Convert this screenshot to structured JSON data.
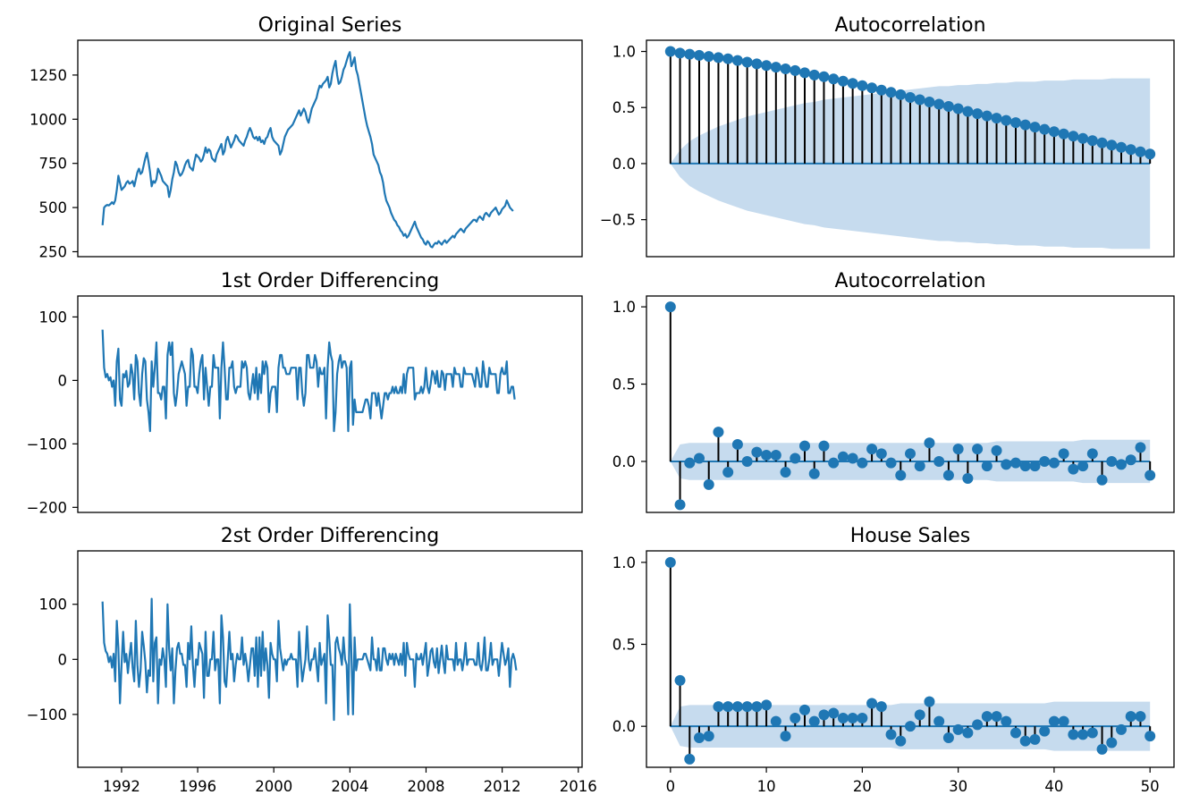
{
  "colors": {
    "series": "#1f77b4",
    "stem": "#000000",
    "confint": "#c6dbee",
    "frame": "#000000"
  },
  "chart_data": [
    {
      "type": "line",
      "title": "Original Series",
      "ylim": [
        222,
        1447
      ],
      "xlim": [
        1989.7,
        2016.2
      ],
      "yticks": [
        "250",
        "500",
        "750",
        "1000",
        "1250"
      ],
      "xticks": [],
      "x_start": 1991.0,
      "x_step": 0.0833,
      "values": [
        400,
        500,
        510,
        515,
        512,
        520,
        530,
        520,
        540,
        600,
        680,
        640,
        600,
        610,
        620,
        640,
        650,
        635,
        640,
        650,
        620,
        660,
        700,
        720,
        690,
        700,
        740,
        780,
        810,
        760,
        700,
        620,
        650,
        640,
        660,
        720,
        700,
        680,
        650,
        640,
        630,
        620,
        560,
        600,
        660,
        700,
        760,
        740,
        700,
        680,
        690,
        710,
        740,
        760,
        770,
        730,
        720,
        710,
        760,
        800,
        790,
        780,
        760,
        770,
        800,
        840,
        810,
        830,
        820,
        780,
        770,
        760,
        800,
        820,
        840,
        860,
        800,
        820,
        880,
        900,
        870,
        840,
        860,
        880,
        910,
        900,
        880,
        870,
        860,
        850,
        880,
        900,
        930,
        950,
        930,
        900,
        890,
        900,
        880,
        900,
        870,
        880,
        860,
        890,
        900,
        930,
        950,
        900,
        880,
        870,
        860,
        850,
        800,
        820,
        860,
        900,
        920,
        940,
        950,
        960,
        970,
        990,
        1010,
        1030,
        1050,
        1020,
        1040,
        1060,
        1040,
        1000,
        980,
        1020,
        1060,
        1080,
        1100,
        1120,
        1160,
        1190,
        1180,
        1200,
        1210,
        1220,
        1240,
        1180,
        1200,
        1260,
        1300,
        1330,
        1250,
        1200,
        1210,
        1240,
        1280,
        1300,
        1330,
        1360,
        1380,
        1300,
        1320,
        1350,
        1280,
        1250,
        1200,
        1150,
        1100,
        1050,
        1000,
        960,
        930,
        900,
        860,
        800,
        780,
        760,
        740,
        700,
        680,
        640,
        580,
        540,
        520,
        500,
        470,
        450,
        430,
        420,
        400,
        390,
        370,
        360,
        340,
        350,
        330,
        340,
        360,
        380,
        400,
        420,
        390,
        370,
        350,
        330,
        320,
        300,
        290,
        310,
        300,
        280,
        275,
        290,
        300,
        295,
        310,
        300,
        290,
        305,
        315,
        300,
        310,
        320,
        330,
        340,
        330,
        350,
        360,
        370,
        380,
        370,
        360,
        380,
        390,
        400,
        410,
        420,
        430,
        430,
        420,
        440,
        450,
        440,
        430,
        460,
        470,
        460,
        450,
        470,
        480,
        490,
        500,
        480,
        460,
        470,
        490,
        500,
        510,
        540,
        520,
        500,
        490,
        480
      ]
    },
    {
      "type": "line",
      "title": "1st Order Differencing",
      "ylim": [
        -208,
        133
      ],
      "xlim": [
        1989.7,
        2016.2
      ],
      "yticks": [
        "−200",
        "−100",
        "0",
        "100"
      ],
      "xticks": [],
      "x_start": 1991.0,
      "x_step": 0.0833,
      "values": [
        80,
        20,
        5,
        10,
        0,
        5,
        -10,
        0,
        -40,
        30,
        50,
        -30,
        -40,
        10,
        5,
        15,
        -10,
        -5,
        25,
        10,
        -30,
        40,
        30,
        -20,
        -40,
        10,
        35,
        30,
        -30,
        -50,
        -80,
        30,
        -10,
        20,
        60,
        -20,
        -20,
        -30,
        -10,
        -10,
        -60,
        40,
        60,
        40,
        60,
        -20,
        -40,
        -20,
        10,
        20,
        30,
        20,
        10,
        -40,
        -10,
        -10,
        50,
        40,
        -10,
        -10,
        -20,
        10,
        30,
        40,
        -30,
        20,
        -10,
        -40,
        -10,
        -10,
        40,
        20,
        20,
        20,
        -60,
        20,
        60,
        20,
        -30,
        -30,
        20,
        20,
        30,
        -10,
        -20,
        -10,
        -10,
        -10,
        30,
        20,
        30,
        20,
        -20,
        -30,
        -10,
        10,
        -20,
        20,
        -30,
        10,
        -20,
        30,
        10,
        30,
        20,
        -50,
        -20,
        -10,
        -10,
        -10,
        -50,
        20,
        40,
        40,
        20,
        20,
        10,
        10,
        10,
        20,
        20,
        20,
        20,
        -30,
        20,
        20,
        -20,
        -40,
        -20,
        40,
        40,
        20,
        20,
        20,
        40,
        30,
        -10,
        20,
        10,
        10,
        20,
        -60,
        20,
        60,
        40,
        30,
        -80,
        -50,
        10,
        30,
        40,
        20,
        30,
        30,
        20,
        -80,
        20,
        30,
        -70,
        -30,
        -50,
        -50,
        -50,
        -50,
        -50,
        -40,
        -30,
        -30,
        -40,
        -60,
        -20,
        -20,
        -20,
        -40,
        -20,
        -40,
        -60,
        -40,
        -20,
        -20,
        -30,
        -20,
        -20,
        -10,
        -20,
        -10,
        -20,
        -20,
        -10,
        -20,
        10,
        -20,
        10,
        20,
        20,
        20,
        20,
        -30,
        -20,
        -20,
        -20,
        -10,
        -20,
        -10,
        20,
        -10,
        -20,
        -5,
        15,
        10,
        -5,
        15,
        -10,
        -10,
        15,
        10,
        -15,
        10,
        10,
        10,
        10,
        -10,
        20,
        10,
        10,
        10,
        -10,
        -10,
        20,
        10,
        10,
        10,
        10,
        10,
        0,
        -10,
        20,
        10,
        -10,
        -10,
        30,
        10,
        -10,
        -10,
        20,
        10,
        10,
        10,
        10,
        -20,
        -20,
        10,
        20,
        10,
        10,
        30,
        -20,
        -20,
        -10,
        -10,
        -30
      ]
    },
    {
      "type": "line",
      "title": "2st Order Differencing",
      "ylim": [
        -196,
        197
      ],
      "xlim": [
        1989.7,
        2016.2
      ],
      "yticks": [
        "−100",
        "0",
        "100"
      ],
      "xticks": [
        "1992",
        "1996",
        "2000",
        "2004",
        "2008",
        "2012",
        "2016"
      ],
      "xtick_values": [
        1992,
        1996,
        2000,
        2004,
        2008,
        2012,
        2016
      ],
      "x_start": 1991.0,
      "x_step": 0.0833,
      "values": [
        105,
        30,
        15,
        10,
        -5,
        5,
        -15,
        10,
        -40,
        70,
        20,
        -80,
        -10,
        50,
        -5,
        10,
        -25,
        5,
        30,
        -15,
        -40,
        70,
        -10,
        -50,
        -20,
        50,
        25,
        -5,
        -60,
        -20,
        -30,
        110,
        -40,
        30,
        40,
        -80,
        0,
        -10,
        20,
        0,
        -50,
        100,
        20,
        -20,
        20,
        -80,
        -20,
        20,
        30,
        10,
        10,
        -10,
        -10,
        -50,
        30,
        0,
        60,
        -10,
        -50,
        0,
        -10,
        30,
        20,
        10,
        -70,
        50,
        -30,
        -30,
        0,
        0,
        50,
        -20,
        0,
        0,
        -80,
        80,
        40,
        -40,
        -50,
        0,
        50,
        0,
        10,
        -40,
        -10,
        10,
        0,
        0,
        40,
        -10,
        10,
        -10,
        -40,
        -10,
        20,
        20,
        -30,
        40,
        -50,
        40,
        -30,
        50,
        -20,
        20,
        -10,
        -70,
        30,
        10,
        0,
        0,
        -40,
        70,
        20,
        0,
        -20,
        0,
        -10,
        0,
        0,
        10,
        0,
        0,
        0,
        -50,
        50,
        0,
        -40,
        -20,
        0,
        60,
        0,
        -20,
        0,
        0,
        20,
        -10,
        -40,
        30,
        -10,
        0,
        10,
        -80,
        80,
        40,
        -10,
        -10,
        -110,
        30,
        40,
        20,
        10,
        -10,
        40,
        0,
        -10,
        -100,
        100,
        10,
        -100,
        40,
        -20,
        0,
        0,
        0,
        0,
        10,
        10,
        0,
        -10,
        -20,
        40,
        0,
        0,
        -20,
        20,
        -20,
        -20,
        20,
        20,
        0,
        -10,
        10,
        0,
        10,
        -10,
        10,
        0,
        -10,
        10,
        -10,
        30,
        -30,
        30,
        10,
        0,
        0,
        0,
        -50,
        10,
        0,
        0,
        10,
        -10,
        10,
        30,
        -30,
        -10,
        15,
        20,
        -5,
        -15,
        20,
        -25,
        0,
        25,
        -5,
        -25,
        25,
        0,
        0,
        0,
        0,
        -20,
        30,
        -10,
        0,
        0,
        -20,
        0,
        30,
        -10,
        0,
        0,
        0,
        0,
        -10,
        -10,
        30,
        -10,
        -20,
        0,
        40,
        -20,
        -20,
        0,
        30,
        -10,
        0,
        0,
        0,
        -30,
        0,
        30,
        10,
        -10,
        0,
        20,
        -50,
        0,
        10,
        0,
        -20
      ]
    },
    {
      "type": "stem",
      "title": "Autocorrelation",
      "ylim": [
        -0.83,
        1.1
      ],
      "xlim": [
        -2.5,
        52.5
      ],
      "yticks": [
        "−0.5",
        "0.0",
        "0.5",
        "1.0"
      ],
      "ytick_values": [
        -0.5,
        0.0,
        0.5,
        1.0
      ],
      "xticks": [],
      "values": [
        1.0,
        0.985,
        0.975,
        0.965,
        0.955,
        0.945,
        0.935,
        0.92,
        0.905,
        0.89,
        0.875,
        0.86,
        0.845,
        0.83,
        0.81,
        0.79,
        0.775,
        0.755,
        0.735,
        0.715,
        0.695,
        0.675,
        0.655,
        0.635,
        0.615,
        0.59,
        0.57,
        0.55,
        0.53,
        0.51,
        0.49,
        0.465,
        0.445,
        0.425,
        0.405,
        0.385,
        0.365,
        0.345,
        0.325,
        0.305,
        0.285,
        0.265,
        0.245,
        0.225,
        0.205,
        0.185,
        0.165,
        0.145,
        0.125,
        0.105,
        0.085
      ],
      "confint": [
        0.0,
        0.12,
        0.2,
        0.25,
        0.29,
        0.33,
        0.36,
        0.39,
        0.42,
        0.44,
        0.46,
        0.48,
        0.5,
        0.52,
        0.54,
        0.55,
        0.57,
        0.58,
        0.59,
        0.6,
        0.61,
        0.62,
        0.63,
        0.64,
        0.65,
        0.66,
        0.67,
        0.68,
        0.69,
        0.69,
        0.7,
        0.7,
        0.71,
        0.71,
        0.72,
        0.72,
        0.73,
        0.73,
        0.73,
        0.74,
        0.74,
        0.74,
        0.75,
        0.75,
        0.75,
        0.75,
        0.76,
        0.76,
        0.76,
        0.76,
        0.76
      ]
    },
    {
      "type": "stem",
      "title": "Autocorrelation",
      "ylim": [
        -0.33,
        1.07
      ],
      "xlim": [
        -2.5,
        52.5
      ],
      "yticks": [
        "0.0",
        "0.5",
        "1.0"
      ],
      "ytick_values": [
        0.0,
        0.5,
        1.0
      ],
      "xticks": [],
      "values": [
        1.0,
        -0.28,
        -0.01,
        0.02,
        -0.15,
        0.19,
        -0.07,
        0.11,
        0.0,
        0.06,
        0.04,
        0.04,
        -0.07,
        0.02,
        0.1,
        -0.08,
        0.1,
        -0.01,
        0.03,
        0.02,
        -0.01,
        0.08,
        0.05,
        -0.01,
        -0.09,
        0.05,
        -0.03,
        0.12,
        0.0,
        -0.09,
        0.08,
        -0.11,
        0.08,
        -0.03,
        0.07,
        -0.02,
        -0.01,
        -0.03,
        -0.03,
        0.0,
        -0.01,
        0.05,
        -0.05,
        -0.03,
        0.05,
        -0.12,
        0.0,
        -0.02,
        0.01,
        0.09,
        -0.09
      ],
      "confint": [
        0.0,
        0.11,
        0.12,
        0.12,
        0.12,
        0.12,
        0.12,
        0.12,
        0.12,
        0.12,
        0.12,
        0.12,
        0.12,
        0.12,
        0.12,
        0.12,
        0.12,
        0.12,
        0.12,
        0.12,
        0.12,
        0.12,
        0.12,
        0.12,
        0.12,
        0.12,
        0.12,
        0.12,
        0.12,
        0.12,
        0.12,
        0.12,
        0.12,
        0.12,
        0.13,
        0.13,
        0.13,
        0.13,
        0.13,
        0.13,
        0.13,
        0.13,
        0.13,
        0.14,
        0.14,
        0.14,
        0.14,
        0.14,
        0.14,
        0.14,
        0.14
      ]
    },
    {
      "type": "stem",
      "title": "House Sales",
      "ylim": [
        -0.25,
        1.07
      ],
      "xlim": [
        -2.5,
        52.5
      ],
      "yticks": [
        "0.0",
        "0.5",
        "1.0"
      ],
      "ytick_values": [
        0.0,
        0.5,
        1.0
      ],
      "xticks": [
        "0",
        "10",
        "20",
        "30",
        "40",
        "50"
      ],
      "xtick_values": [
        0,
        10,
        20,
        30,
        40,
        50
      ],
      "values": [
        1.0,
        0.28,
        -0.2,
        -0.07,
        -0.06,
        0.12,
        0.12,
        0.12,
        0.12,
        0.12,
        0.13,
        0.03,
        -0.06,
        0.05,
        0.1,
        0.03,
        0.07,
        0.08,
        0.05,
        0.05,
        0.05,
        0.14,
        0.12,
        -0.05,
        -0.09,
        0.0,
        0.07,
        0.15,
        0.03,
        -0.07,
        -0.02,
        -0.04,
        0.01,
        0.06,
        0.06,
        0.03,
        -0.04,
        -0.09,
        -0.08,
        -0.03,
        0.03,
        0.03,
        -0.05,
        -0.05,
        -0.04,
        -0.14,
        -0.1,
        -0.02,
        0.06,
        0.06,
        -0.06
      ],
      "confint": [
        0.0,
        0.12,
        0.13,
        0.13,
        0.13,
        0.13,
        0.13,
        0.13,
        0.13,
        0.13,
        0.13,
        0.13,
        0.13,
        0.13,
        0.13,
        0.13,
        0.13,
        0.13,
        0.13,
        0.13,
        0.13,
        0.13,
        0.13,
        0.13,
        0.14,
        0.14,
        0.14,
        0.14,
        0.14,
        0.14,
        0.14,
        0.14,
        0.14,
        0.14,
        0.14,
        0.14,
        0.14,
        0.14,
        0.14,
        0.14,
        0.15,
        0.15,
        0.15,
        0.15,
        0.15,
        0.15,
        0.15,
        0.15,
        0.15,
        0.15,
        0.15
      ]
    }
  ]
}
